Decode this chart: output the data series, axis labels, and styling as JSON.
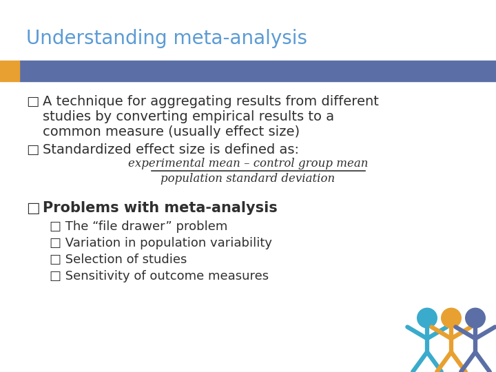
{
  "title": "Understanding meta-analysis",
  "title_color": "#5B9BD5",
  "title_fontsize": 20,
  "bg_color": "#FFFFFF",
  "header_bar_color": "#5B6FA6",
  "header_bar_accent_color": "#E8A030",
  "bullet_color": "#2F2F2F",
  "bullet1_line1": "A technique for aggregating results from different",
  "bullet1_line2": "studies by converting empirical results to a",
  "bullet1_line3": "common measure (usually effect size)",
  "bullet2": "Standardized effect size is defined as:",
  "formula_numerator": "experimental mean – control group mean",
  "formula_denominator": "population standard deviation",
  "bullet3": "Problems with meta-analysis",
  "sub_bullets": [
    "□ The “file drawer” problem",
    "□ Variation in population variability",
    "□ Selection of studies",
    "□ Sensitivity of outcome measures"
  ],
  "bullet_fontsize": 14,
  "problems_fontsize": 15,
  "sub_bullet_fontsize": 13,
  "formula_fontsize": 12,
  "figure_colors": [
    "#3AABCC",
    "#E8A030",
    "#5B6FA6"
  ],
  "square_bullet": "□"
}
